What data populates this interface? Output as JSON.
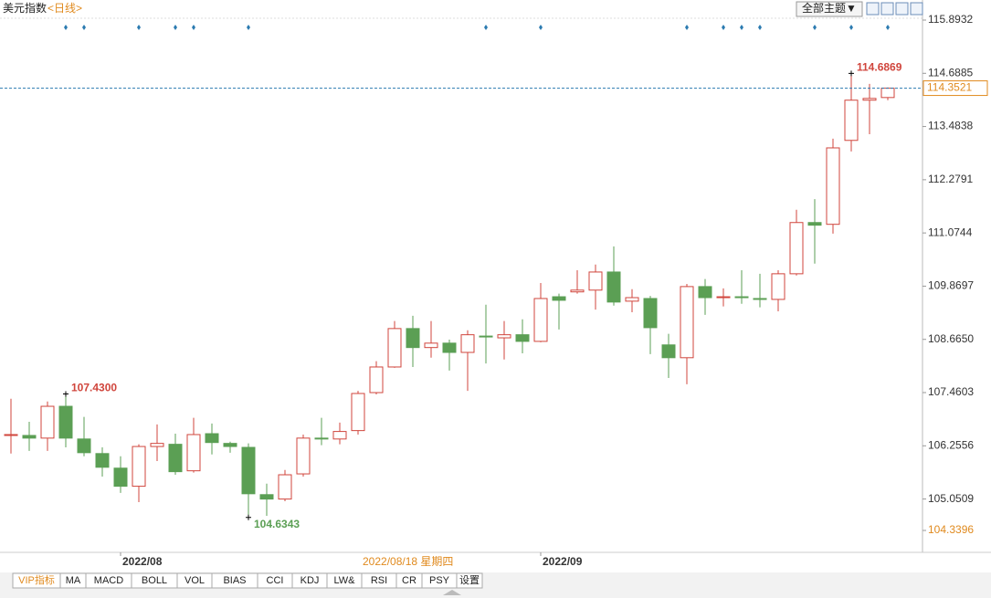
{
  "chart_data": {
    "type": "candlestick",
    "title": "美元指数",
    "subtitle": "<日线>",
    "theme_button": "全部主题▼",
    "crosshair_label": "2022/08/18 星期四",
    "categories": [
      null,
      null,
      null,
      null,
      null,
      null,
      "2022/08",
      null,
      null,
      null,
      null,
      null,
      null,
      null,
      null,
      null,
      null,
      null,
      null,
      null,
      null,
      null,
      null,
      null,
      null,
      null,
      null,
      null,
      null,
      "2022/09",
      null,
      null,
      null,
      null,
      null,
      null,
      null,
      null,
      null,
      null,
      null,
      null,
      null,
      null,
      null,
      null,
      null,
      null,
      null
    ],
    "open": [
      106.49,
      106.49,
      106.43,
      107.15,
      106.41,
      106.08,
      105.75,
      105.34,
      106.24,
      106.29,
      105.69,
      106.53,
      106.31,
      106.22,
      105.15,
      105.05,
      105.62,
      106.43,
      106.41,
      106.6,
      107.46,
      108.04,
      108.91,
      108.48,
      108.58,
      108.37,
      108.74,
      108.7,
      108.77,
      108.62,
      109.63,
      109.74,
      109.78,
      110.19,
      109.53,
      109.59,
      108.54,
      108.25,
      109.86,
      109.61,
      109.63,
      109.59,
      109.57,
      110.15,
      111.31,
      111.27,
      113.17,
      114.08,
      114.14
    ],
    "high": [
      107.32,
      106.8,
      107.26,
      107.43,
      106.91,
      106.22,
      106.02,
      106.29,
      106.74,
      106.53,
      106.89,
      106.76,
      106.35,
      106.31,
      105.4,
      105.71,
      106.51,
      106.89,
      106.78,
      107.5,
      108.17,
      109.08,
      109.2,
      109.08,
      108.66,
      108.87,
      109.45,
      109.08,
      109.12,
      109.94,
      109.7,
      110.23,
      110.36,
      110.77,
      109.8,
      109.65,
      108.79,
      109.92,
      110.03,
      109.82,
      110.23,
      110.15,
      110.23,
      111.6,
      111.84,
      113.21,
      114.6869,
      114.45,
      114.37
    ],
    "low": [
      106.08,
      106.14,
      106.14,
      106.22,
      106.02,
      105.56,
      105.19,
      104.98,
      105.91,
      105.6,
      105.65,
      106.06,
      106.1,
      104.6343,
      104.67,
      105.0,
      105.56,
      106.27,
      106.29,
      106.51,
      107.42,
      108.02,
      108.04,
      108.25,
      107.96,
      107.5,
      108.12,
      108.21,
      108.35,
      108.6,
      108.89,
      109.7,
      109.34,
      109.43,
      109.28,
      108.33,
      107.79,
      107.65,
      109.22,
      109.41,
      109.47,
      109.39,
      109.3,
      110.11,
      110.38,
      111.06,
      112.92,
      113.31,
      114.08
    ],
    "close": [
      106.51,
      106.43,
      107.15,
      106.43,
      106.1,
      105.77,
      105.34,
      106.24,
      106.31,
      105.67,
      106.51,
      106.33,
      106.24,
      105.17,
      105.05,
      105.6,
      106.43,
      106.41,
      106.58,
      107.44,
      108.04,
      108.91,
      108.48,
      108.58,
      108.37,
      108.77,
      108.72,
      108.77,
      108.62,
      109.59,
      109.55,
      109.78,
      110.19,
      109.51,
      109.61,
      108.93,
      108.25,
      109.86,
      109.61,
      109.63,
      109.61,
      109.57,
      110.15,
      111.31,
      111.25,
      113.0,
      114.08,
      114.12,
      114.3521
    ],
    "up_color": "#d0453c",
    "down_color": "#5b9f54",
    "annotations": [
      {
        "value": 107.43,
        "label": "107.4300"
      },
      {
        "value": 104.6343,
        "label": "104.6343"
      },
      {
        "value": 114.6869,
        "label": "114.6869"
      }
    ],
    "current_price": 114.3521,
    "ylim": [
      104.3396,
      115.8932
    ],
    "yticks": [
      115.8932,
      114.6885,
      113.4838,
      112.2791,
      111.0744,
      109.8697,
      {
        "value": 108.665,
        "label": "108.6650"
      },
      107.4603,
      106.2556,
      105.0509,
      104.3396
    ],
    "tabs": [
      "VIP指标",
      "MA",
      "MACD",
      "BOLL",
      "VOL",
      "BIAS",
      "CCI",
      "KDJ",
      "LW&",
      "RSI",
      "CR",
      "PSY",
      "设置"
    ]
  }
}
